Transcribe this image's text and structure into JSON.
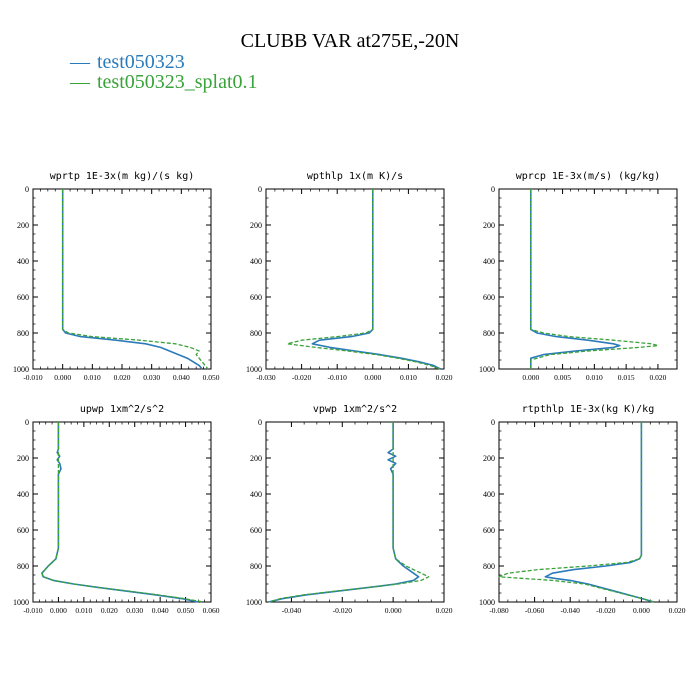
{
  "title": "CLUBB VAR at275E,-20N",
  "colors": {
    "series_1": "#2b7bba",
    "series_2": "#3aa23a"
  },
  "legend": [
    {
      "dash": "—",
      "label": "test050323"
    },
    {
      "dash": "—",
      "label": "test050323_splat0.1"
    }
  ],
  "chart_data": [
    {
      "type": "line",
      "title": "wprtp  1E-3x(m kg)/(s kg)",
      "xlim": [
        -0.01,
        0.05
      ],
      "ylim": [
        1000,
        0
      ],
      "xticks": [
        -0.01,
        0.0,
        0.01,
        0.02,
        0.03,
        0.04,
        0.05
      ],
      "xtick_labels": [
        "-0.010",
        "0.000",
        "0.010",
        "0.020",
        "0.030",
        "0.040",
        "0.050"
      ],
      "yticks": [
        0,
        200,
        400,
        600,
        800,
        1000
      ],
      "ytick_labels": [
        "0",
        "200",
        "400",
        "600",
        "800",
        "1000"
      ],
      "y": [
        0,
        200,
        400,
        600,
        780,
        800,
        820,
        840,
        860,
        880,
        900,
        920,
        940,
        960,
        980,
        1000
      ],
      "series": [
        {
          "name": "test050323",
          "style": "solid",
          "values": [
            0.0,
            0.0,
            0.0,
            0.0,
            0.0,
            0.001,
            0.006,
            0.018,
            0.028,
            0.033,
            0.036,
            0.039,
            0.042,
            0.044,
            0.046,
            0.047
          ]
        },
        {
          "name": "test050323_splat0.1",
          "style": "dashed",
          "values": [
            0.0,
            0.0,
            0.0,
            0.0,
            0.0,
            0.002,
            0.01,
            0.026,
            0.038,
            0.043,
            0.046,
            0.045,
            0.046,
            0.047,
            0.048,
            0.049
          ]
        }
      ]
    },
    {
      "type": "line",
      "title": "wpthlp  1x(m K)/s",
      "xlim": [
        -0.03,
        0.02
      ],
      "ylim": [
        1000,
        0
      ],
      "xticks": [
        -0.03,
        -0.02,
        -0.01,
        0.0,
        0.01,
        0.02
      ],
      "xtick_labels": [
        "-0.030",
        "-0.020",
        "-0.010",
        "0.000",
        "0.010",
        "0.020"
      ],
      "yticks": [
        0,
        200,
        400,
        600,
        800,
        1000
      ],
      "ytick_labels": [
        "0",
        "200",
        "400",
        "600",
        "800",
        "1000"
      ],
      "y": [
        0,
        200,
        400,
        600,
        780,
        800,
        820,
        840,
        860,
        880,
        900,
        920,
        940,
        960,
        980,
        1000
      ],
      "series": [
        {
          "name": "test050323",
          "style": "solid",
          "values": [
            0.0,
            0.0,
            0.0,
            0.0,
            0.0,
            -0.001,
            -0.006,
            -0.015,
            -0.017,
            -0.012,
            -0.005,
            0.002,
            0.008,
            0.013,
            0.017,
            0.019
          ]
        },
        {
          "name": "test050323_splat0.1",
          "style": "dashed",
          "values": [
            0.0,
            0.0,
            0.0,
            0.0,
            0.0,
            -0.002,
            -0.01,
            -0.02,
            -0.024,
            -0.016,
            -0.007,
            0.001,
            0.007,
            0.012,
            0.016,
            0.019
          ]
        }
      ]
    },
    {
      "type": "line",
      "title": "wprcp  1E-3x(m/s) (kg/kg)",
      "xlim": [
        -0.005,
        0.023
      ],
      "ylim": [
        1000,
        0
      ],
      "xticks": [
        0.0,
        0.005,
        0.01,
        0.015,
        0.02
      ],
      "xtick_labels": [
        "0.000",
        "0.005",
        "0.010",
        "0.015",
        "0.020"
      ],
      "yticks": [
        0,
        200,
        400,
        600,
        800,
        1000
      ],
      "ytick_labels": [
        "0",
        "200",
        "400",
        "600",
        "800",
        "1000"
      ],
      "y": [
        0,
        200,
        400,
        600,
        780,
        800,
        820,
        840,
        860,
        870,
        880,
        900,
        920,
        940,
        950,
        960,
        1000
      ],
      "series": [
        {
          "name": "test050323",
          "style": "solid",
          "values": [
            0.0,
            0.0,
            0.0,
            0.0,
            0.0,
            0.001,
            0.004,
            0.009,
            0.013,
            0.014,
            0.013,
            0.007,
            0.002,
            0.0,
            0.0,
            0.0,
            0.0
          ]
        },
        {
          "name": "test050323_splat0.1",
          "style": "dashed",
          "values": [
            0.0,
            0.0,
            0.0,
            0.0,
            0.0,
            0.002,
            0.006,
            0.013,
            0.019,
            0.02,
            0.017,
            0.009,
            0.003,
            0.001,
            0.0,
            0.0,
            0.0
          ]
        }
      ]
    },
    {
      "type": "line",
      "title": "upwp  1xm^2/s^2",
      "xlim": [
        -0.01,
        0.06
      ],
      "ylim": [
        1000,
        0
      ],
      "xticks": [
        -0.01,
        0.0,
        0.01,
        0.02,
        0.03,
        0.04,
        0.05,
        0.06
      ],
      "xtick_labels": [
        "-0.010",
        "0.000",
        "0.010",
        "0.020",
        "0.030",
        "0.040",
        "0.050",
        "0.060"
      ],
      "yticks": [
        0,
        200,
        400,
        600,
        800,
        1000
      ],
      "ytick_labels": [
        "0",
        "200",
        "400",
        "600",
        "800",
        "1000"
      ],
      "y": [
        0,
        150,
        170,
        190,
        210,
        230,
        260,
        290,
        320,
        400,
        600,
        700,
        760,
        800,
        840,
        860,
        880,
        900,
        920,
        940,
        960,
        980,
        1000
      ],
      "series": [
        {
          "name": "test050323",
          "style": "solid",
          "values": [
            0.0,
            0.0,
            -0.0005,
            0.0005,
            -0.0005,
            0.0005,
            0.001,
            0.0,
            0.0,
            0.0,
            0.0,
            0.0,
            -0.001,
            -0.004,
            -0.0065,
            -0.006,
            -0.002,
            0.006,
            0.016,
            0.027,
            0.038,
            0.048,
            0.055
          ]
        },
        {
          "name": "test050323_splat0.1",
          "style": "dashed",
          "values": [
            0.0,
            0.0,
            0.0,
            0.0,
            0.0,
            0.0,
            0.0,
            0.0,
            0.0,
            0.0,
            0.0,
            0.0,
            -0.001,
            -0.004,
            -0.0065,
            -0.006,
            -0.002,
            0.006,
            0.016,
            0.028,
            0.039,
            0.049,
            0.057
          ]
        }
      ]
    },
    {
      "type": "line",
      "title": "vpwp  1xm^2/s^2",
      "xlim": [
        -0.05,
        0.02
      ],
      "ylim": [
        1000,
        0
      ],
      "xticks": [
        -0.04,
        -0.02,
        0.0,
        0.02
      ],
      "xtick_labels": [
        "-0.040",
        "-0.020",
        "0.000",
        "0.020"
      ],
      "yticks": [
        0,
        200,
        400,
        600,
        800,
        1000
      ],
      "ytick_labels": [
        "0",
        "200",
        "400",
        "600",
        "800",
        "1000"
      ],
      "y": [
        0,
        150,
        170,
        190,
        210,
        230,
        260,
        290,
        400,
        600,
        700,
        760,
        800,
        840,
        860,
        880,
        900,
        920,
        940,
        960,
        980,
        1000
      ],
      "series": [
        {
          "name": "test050323",
          "style": "solid",
          "values": [
            0.0,
            0.0,
            -0.002,
            0.001,
            -0.002,
            0.001,
            -0.001,
            0.0,
            0.0,
            0.0,
            0.0,
            0.001,
            0.004,
            0.008,
            0.01,
            0.008,
            0.001,
            -0.01,
            -0.022,
            -0.034,
            -0.043,
            -0.049
          ]
        },
        {
          "name": "test050323_splat0.1",
          "style": "dashed",
          "values": [
            0.0,
            0.0,
            0.0,
            0.0,
            0.0,
            0.0,
            0.0,
            0.0,
            0.0,
            0.0,
            0.0,
            0.001,
            0.005,
            0.011,
            0.014,
            0.011,
            0.002,
            -0.01,
            -0.023,
            -0.035,
            -0.044,
            -0.049
          ]
        }
      ]
    },
    {
      "type": "line",
      "title": "rtpthlp  1E-3x(kg K)/kg",
      "xlim": [
        -0.08,
        0.02
      ],
      "ylim": [
        1000,
        0
      ],
      "xticks": [
        -0.08,
        -0.06,
        -0.04,
        -0.02,
        0.0,
        0.02
      ],
      "xtick_labels": [
        "-0.080",
        "-0.060",
        "-0.040",
        "-0.020",
        "0.000",
        "0.020"
      ],
      "yticks": [
        0,
        200,
        400,
        600,
        800,
        1000
      ],
      "ytick_labels": [
        "0",
        "200",
        "400",
        "600",
        "800",
        "1000"
      ],
      "y": [
        0,
        200,
        400,
        600,
        740,
        760,
        780,
        800,
        820,
        840,
        860,
        870,
        880,
        900,
        940,
        980,
        1000
      ],
      "series": [
        {
          "name": "test050323",
          "style": "solid",
          "values": [
            0.0,
            0.0,
            0.0,
            0.0,
            0.0,
            -0.001,
            -0.006,
            -0.02,
            -0.038,
            -0.05,
            -0.054,
            -0.048,
            -0.04,
            -0.03,
            -0.015,
            0.0,
            0.007
          ]
        },
        {
          "name": "test050323_splat0.1",
          "style": "dashed",
          "values": [
            0.0,
            0.0,
            0.0,
            0.0,
            0.0,
            -0.001,
            -0.008,
            -0.03,
            -0.058,
            -0.075,
            -0.08,
            -0.065,
            -0.05,
            -0.032,
            -0.016,
            0.0,
            0.007
          ]
        }
      ]
    }
  ]
}
